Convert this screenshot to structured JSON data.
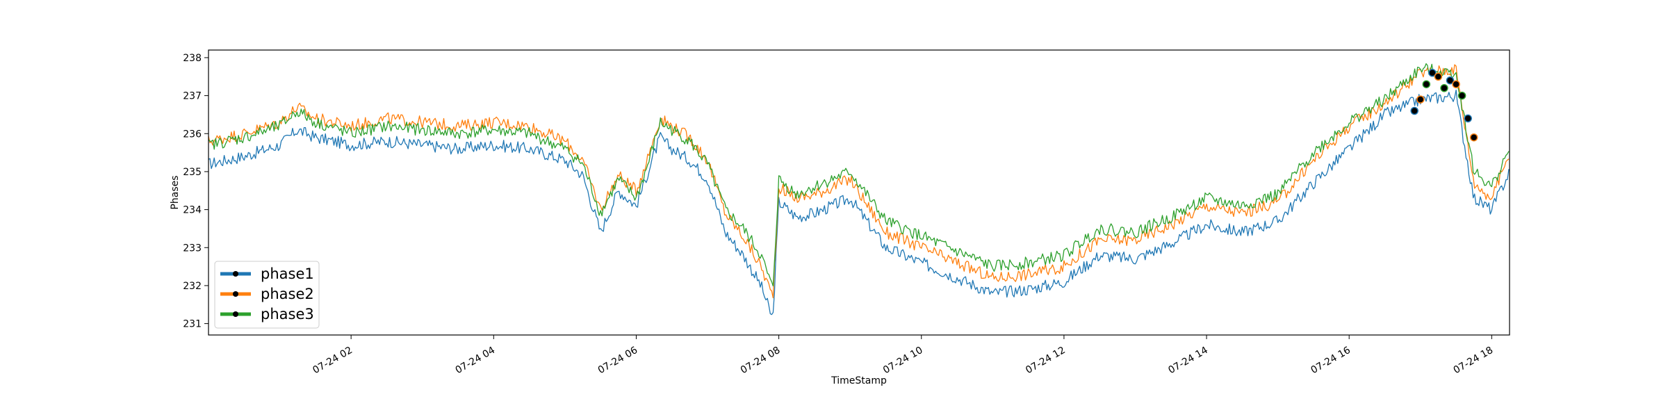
{
  "chart_data": {
    "type": "line",
    "title": "",
    "xlabel": "TimeStamp",
    "ylabel": "Phases",
    "x_unit": "time of day (2024-07-24)",
    "xlim": [
      "00:00",
      "18:15"
    ],
    "ylim": [
      230.7,
      238.2
    ],
    "x_ticks": [
      "02:00",
      "04:00",
      "06:00",
      "08:00",
      "10:00",
      "12:00",
      "14:00",
      "16:00",
      "18:00"
    ],
    "x_tick_labels": [
      "07-24 02",
      "07-24 04",
      "07-24 06",
      "07-24 08",
      "07-24 10",
      "07-24 12",
      "07-24 14",
      "07-24 16",
      "07-24 18"
    ],
    "y_ticks": [
      231,
      232,
      233,
      234,
      235,
      236,
      237,
      238
    ],
    "grid": false,
    "legend_position": "lower-left",
    "series": [
      {
        "name": "phase1",
        "color": "#1f77b4",
        "x": [
          "00:00",
          "00:30",
          "01:00",
          "01:15",
          "01:30",
          "02:00",
          "02:30",
          "03:00",
          "03:30",
          "04:00",
          "04:30",
          "05:00",
          "05:15",
          "05:30",
          "05:45",
          "06:00",
          "06:10",
          "06:20",
          "06:30",
          "06:45",
          "07:00",
          "07:15",
          "07:30",
          "07:45",
          "07:55",
          "08:00",
          "08:15",
          "08:30",
          "09:00",
          "09:30",
          "10:00",
          "10:30",
          "11:00",
          "11:30",
          "12:00",
          "12:30",
          "13:00",
          "13:30",
          "14:00",
          "14:30",
          "15:00",
          "15:30",
          "16:00",
          "16:30",
          "17:00",
          "17:30",
          "17:45",
          "18:00",
          "18:15"
        ],
        "values": [
          235.2,
          235.4,
          235.7,
          236.1,
          235.9,
          235.7,
          235.8,
          235.7,
          235.6,
          235.7,
          235.6,
          235.3,
          234.9,
          233.4,
          234.5,
          234.1,
          235.0,
          235.9,
          235.6,
          235.3,
          234.8,
          233.4,
          232.8,
          232.0,
          231.1,
          234.2,
          233.8,
          233.9,
          234.3,
          233.0,
          232.6,
          232.2,
          231.8,
          231.9,
          232.1,
          232.8,
          232.7,
          233.1,
          233.6,
          233.4,
          233.7,
          234.7,
          235.6,
          236.5,
          236.9,
          237.0,
          234.3,
          234.0,
          235.0
        ]
      },
      {
        "name": "phase2",
        "color": "#ff7f0e",
        "x": [
          "00:00",
          "00:30",
          "01:00",
          "01:15",
          "01:30",
          "02:00",
          "02:30",
          "03:00",
          "03:30",
          "04:00",
          "04:30",
          "05:00",
          "05:15",
          "05:30",
          "05:45",
          "06:00",
          "06:10",
          "06:20",
          "06:30",
          "06:45",
          "07:00",
          "07:15",
          "07:30",
          "07:45",
          "07:55",
          "08:00",
          "08:15",
          "08:30",
          "09:00",
          "09:30",
          "10:00",
          "10:30",
          "11:00",
          "11:30",
          "12:00",
          "12:30",
          "13:00",
          "13:30",
          "14:00",
          "14:30",
          "15:00",
          "15:30",
          "16:00",
          "16:30",
          "17:00",
          "17:30",
          "17:45",
          "18:00",
          "18:15"
        ],
        "values": [
          235.8,
          236.0,
          236.3,
          236.7,
          236.4,
          236.2,
          236.4,
          236.3,
          236.2,
          236.3,
          236.2,
          235.8,
          235.3,
          234.0,
          234.9,
          234.5,
          235.4,
          236.4,
          236.2,
          235.9,
          235.3,
          233.9,
          233.3,
          232.5,
          231.7,
          234.6,
          234.3,
          234.4,
          234.8,
          233.4,
          233.0,
          232.6,
          232.2,
          232.3,
          232.5,
          233.2,
          233.2,
          233.6,
          234.1,
          233.9,
          234.2,
          235.3,
          236.2,
          236.8,
          237.6,
          237.7,
          234.7,
          234.3,
          235.5
        ]
      },
      {
        "name": "phase3",
        "color": "#2ca02c",
        "x": [
          "00:00",
          "00:30",
          "01:00",
          "01:15",
          "01:30",
          "02:00",
          "02:30",
          "03:00",
          "03:30",
          "04:00",
          "04:30",
          "05:00",
          "05:15",
          "05:30",
          "05:45",
          "06:00",
          "06:10",
          "06:20",
          "06:30",
          "06:45",
          "07:00",
          "07:15",
          "07:30",
          "07:45",
          "07:55",
          "08:00",
          "08:15",
          "08:30",
          "09:00",
          "09:30",
          "10:00",
          "10:30",
          "11:00",
          "11:30",
          "12:00",
          "12:30",
          "13:00",
          "13:30",
          "14:00",
          "14:30",
          "15:00",
          "15:30",
          "16:00",
          "16:30",
          "17:00",
          "17:30",
          "17:45",
          "18:00",
          "18:15"
        ],
        "values": [
          235.7,
          235.9,
          236.2,
          236.6,
          236.3,
          236.0,
          236.2,
          236.1,
          236.0,
          236.1,
          236.0,
          235.6,
          235.2,
          233.9,
          234.8,
          234.3,
          235.2,
          236.3,
          236.1,
          235.8,
          235.2,
          234.0,
          233.5,
          232.8,
          231.9,
          234.8,
          234.4,
          234.6,
          235.0,
          233.7,
          233.3,
          232.9,
          232.5,
          232.6,
          232.8,
          233.5,
          233.4,
          233.8,
          234.3,
          234.1,
          234.4,
          235.5,
          236.3,
          236.9,
          237.7,
          237.6,
          235.0,
          234.6,
          235.6
        ]
      }
    ],
    "markers": {
      "x": [
        "16:55",
        "17:00",
        "17:05",
        "17:10",
        "17:15",
        "17:20",
        "17:25",
        "17:30",
        "17:35",
        "17:40",
        "17:45"
      ],
      "values": [
        236.6,
        236.9,
        237.3,
        237.6,
        237.5,
        237.2,
        237.4,
        237.3,
        237.0,
        236.4,
        235.9
      ]
    }
  }
}
